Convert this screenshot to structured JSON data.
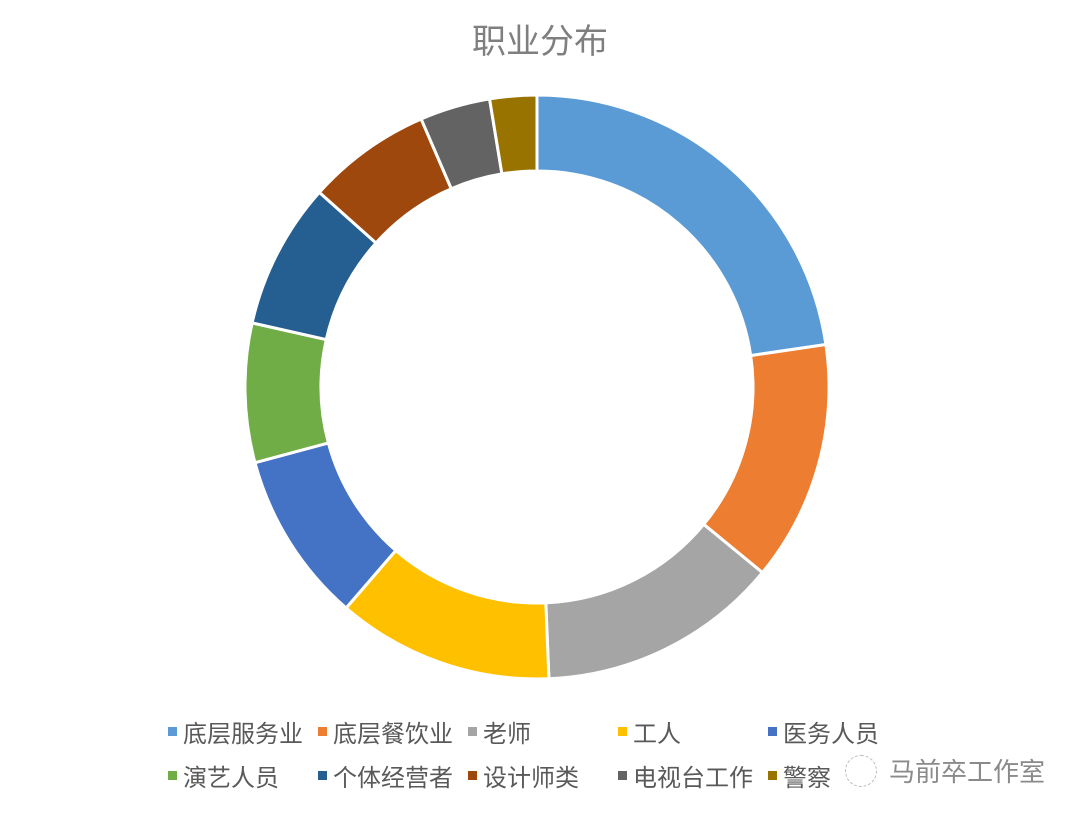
{
  "chart_data": {
    "type": "pie",
    "style": "donut",
    "title": "职业分布",
    "categories": [
      "底层服务业",
      "底层餐饮业",
      "老师",
      "工人",
      "医务人员",
      "演艺人员",
      "个体经营者",
      "设计师类",
      "电视台工作",
      "警察"
    ],
    "values": [
      22.7,
      13.3,
      13.4,
      12.0,
      9.5,
      7.7,
      8.1,
      6.9,
      3.9,
      2.6
    ],
    "unit": "percent (estimated)",
    "colors": [
      "#5B9BD5",
      "#ED7D31",
      "#A5A5A5",
      "#FFC000",
      "#4472C4",
      "#70AD47",
      "#255E91",
      "#9E480E",
      "#636363",
      "#997300"
    ],
    "legend_position": "bottom"
  },
  "watermark": {
    "text": "马前卒工作室",
    "icon": "wechat-icon"
  }
}
